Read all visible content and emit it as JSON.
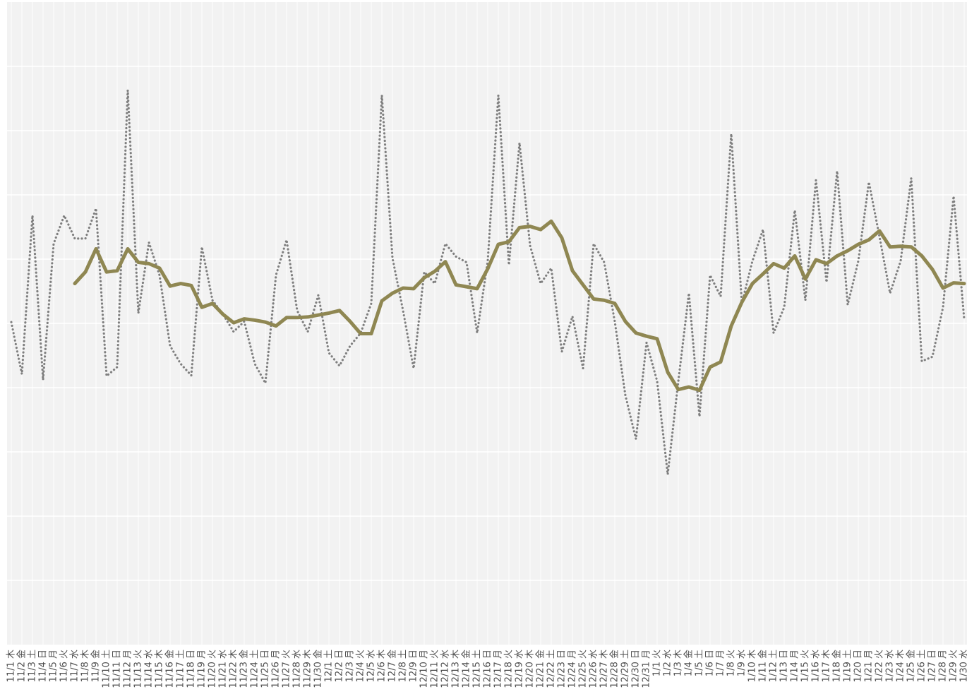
{
  "chart_data": {
    "type": "line",
    "categories": [
      "11/1 木",
      "11/2 金",
      "11/3 土",
      "11/4 日",
      "11/5 月",
      "11/6 火",
      "11/7 水",
      "11/8 木",
      "11/9 金",
      "11/10 土",
      "11/11 日",
      "11/12 月",
      "11/13 火",
      "11/14 水",
      "11/15 木",
      "11/16 金",
      "11/17 土",
      "11/18 日",
      "11/19 月",
      "11/20 火",
      "11/21 水",
      "11/22 木",
      "11/23 金",
      "11/24 土",
      "11/25 日",
      "11/26 月",
      "11/27 火",
      "11/28 水",
      "11/29 木",
      "11/30 金",
      "12/1 土",
      "12/2 日",
      "12/3 月",
      "12/4 火",
      "12/5 水",
      "12/6 木",
      "12/7 金",
      "12/8 土",
      "12/9 日",
      "12/10 月",
      "12/11 火",
      "12/12 水",
      "12/13 木",
      "12/14 金",
      "12/15 土",
      "12/16 日",
      "12/17 月",
      "12/18 火",
      "12/19 水",
      "12/20 木",
      "12/21 金",
      "12/22 土",
      "12/23 日",
      "12/24 月",
      "12/25 火",
      "12/26 水",
      "12/27 木",
      "12/28 金",
      "12/29 土",
      "12/30 日",
      "12/31 月",
      "1/1 火",
      "1/2 水",
      "1/3 木",
      "1/4 金",
      "1/5 土",
      "1/6 日",
      "1/7 月",
      "1/8 火",
      "1/9 水",
      "1/10 木",
      "1/11 金",
      "1/12 土",
      "1/13 日",
      "1/14 月",
      "1/15 火",
      "1/16 水",
      "1/17 木",
      "1/18 金",
      "1/19 土",
      "1/20 日",
      "1/21 月",
      "1/22 火",
      "1/23 水",
      "1/24 木",
      "1/25 金",
      "1/26 土",
      "1/27 日",
      "1/28 月",
      "1/29 火",
      "1/30 水"
    ],
    "series": [
      {
        "color": "#7f7f7f",
        "style": "dotted",
        "values": [
          5.02,
          4.21,
          6.68,
          4.12,
          6.24,
          6.68,
          6.32,
          6.32,
          6.79,
          4.18,
          4.32,
          8.63,
          5.16,
          6.26,
          5.75,
          4.65,
          4.37,
          4.19,
          6.19,
          5.36,
          5.14,
          4.87,
          5.03,
          4.37,
          4.07,
          5.75,
          6.3,
          5.2,
          4.87,
          5.44,
          4.54,
          4.34,
          4.65,
          4.85,
          5.31,
          8.55,
          6.02,
          5.2,
          4.3,
          5.8,
          5.62,
          6.24,
          6.04,
          5.95,
          4.85,
          5.97,
          8.55,
          5.91,
          7.81,
          6.21,
          5.62,
          5.86,
          4.56,
          5.11,
          4.3,
          6.24,
          5.95,
          5.03,
          3.88,
          3.2,
          4.7,
          4.1,
          2.65,
          4.1,
          5.47,
          3.55,
          5.75,
          5.42,
          7.95,
          5.31,
          5.97,
          6.46,
          4.85,
          5.25,
          6.76,
          5.36,
          7.23,
          5.64,
          7.37,
          5.29,
          5.97,
          7.2,
          6.35,
          5.47,
          5.97,
          7.26,
          4.41,
          4.48,
          5.25,
          6.98,
          5.07
        ]
      },
      {
        "color": "#8f8752",
        "style": "solid",
        "values": [
          null,
          null,
          null,
          null,
          null,
          null,
          5.62,
          5.8,
          6.16,
          5.8,
          5.82,
          6.16,
          5.95,
          5.93,
          5.86,
          5.58,
          5.62,
          5.59,
          5.25,
          5.31,
          5.14,
          5.01,
          5.07,
          5.05,
          5.02,
          4.96,
          5.09,
          5.09,
          5.1,
          5.13,
          5.16,
          5.2,
          5.03,
          4.84,
          4.84,
          5.35,
          5.47,
          5.55,
          5.54,
          5.71,
          5.81,
          5.96,
          5.6,
          5.57,
          5.54,
          5.85,
          6.23,
          6.27,
          6.49,
          6.51,
          6.46,
          6.59,
          6.33,
          5.82,
          5.6,
          5.38,
          5.36,
          5.31,
          5.03,
          4.85,
          4.8,
          4.76,
          4.24,
          3.97,
          4.01,
          3.96,
          4.32,
          4.4,
          4.96,
          5.33,
          5.62,
          5.77,
          5.93,
          5.86,
          6.05,
          5.69,
          5.99,
          5.93,
          6.05,
          6.13,
          6.23,
          6.3,
          6.44,
          6.19,
          6.2,
          6.19,
          6.05,
          5.84,
          5.55,
          5.63,
          5.62
        ]
      }
    ],
    "ylim": [
      0,
      10
    ],
    "yticks": [
      1,
      2,
      3,
      4,
      5,
      6,
      7,
      8,
      9
    ],
    "grid": true,
    "background": "#f2f2f2"
  }
}
